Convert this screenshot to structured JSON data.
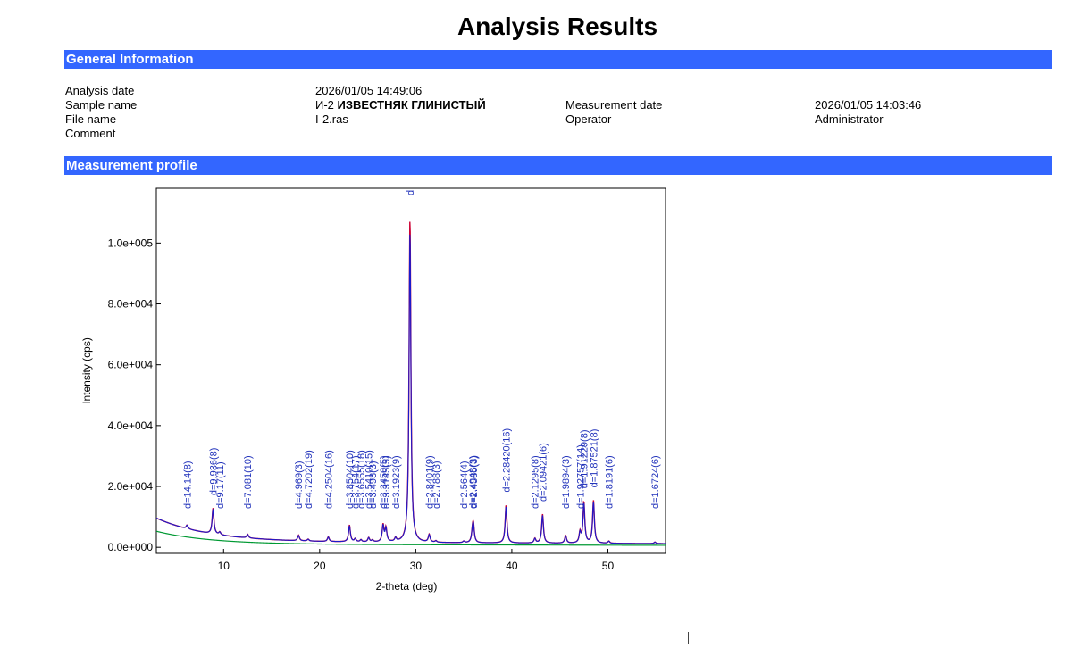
{
  "title": "Analysis Results",
  "sections": {
    "general": "General Information",
    "profile": "Measurement profile"
  },
  "info": {
    "analysis_date_label": "Analysis date",
    "analysis_date": "2026/01/05 14:49:06",
    "sample_name_label": "Sample name",
    "sample_name_prefix": "И-2",
    "sample_name_bold": "ИЗВЕСТНЯК ГЛИНИСТЫЙ",
    "measurement_date_label": "Measurement date",
    "measurement_date": "2026/01/05 14:03:46",
    "file_name_label": "File name",
    "file_name": "I-2.ras",
    "operator_label": "Operator",
    "operator": "Administrator",
    "comment_label": "Comment"
  },
  "chart_data": {
    "type": "line",
    "xlabel": "2-theta (deg)",
    "ylabel": "Intensity (cps)",
    "xlim": [
      3,
      56
    ],
    "ylim": [
      -2000,
      118000
    ],
    "xticks": [
      10,
      20,
      30,
      40,
      50
    ],
    "xtick_labels": [
      "10",
      "20",
      "30",
      "40",
      "50"
    ],
    "yticks": [
      0,
      20000,
      40000,
      60000,
      80000,
      100000
    ],
    "ytick_labels": [
      "0.0e+000",
      "2.0e+004",
      "4.0e+004",
      "6.0e+004",
      "8.0e+004",
      "1.0e+005"
    ],
    "colors": {
      "observed": "#cc0033",
      "calculated": "#1a1acc",
      "background": "#009933",
      "label": "#2233bb"
    },
    "background": {
      "start": 9000,
      "end": 1200
    },
    "peaks": [
      {
        "x": 6.2,
        "h": 1200,
        "label": "d=14.14(8)"
      },
      {
        "x": 8.9,
        "h": 8500,
        "label": "d=9.936(8)"
      },
      {
        "x": 9.6,
        "h": 900,
        "label": "d=9.17(11)"
      },
      {
        "x": 12.5,
        "h": 1200,
        "label": "d=7.081(10)"
      },
      {
        "x": 17.8,
        "h": 1800,
        "label": "d=4.969(3)"
      },
      {
        "x": 18.8,
        "h": 600,
        "label": "d=4.7202(19)"
      },
      {
        "x": 20.9,
        "h": 1500,
        "label": "d=4.2504(16)"
      },
      {
        "x": 23.1,
        "h": 5500,
        "label": "d=3.8504(10)"
      },
      {
        "x": 23.7,
        "h": 1000,
        "label": "d=3.754(17)"
      },
      {
        "x": 24.3,
        "h": 700,
        "label": "d=3.6555(18)"
      },
      {
        "x": 25.1,
        "h": 1400,
        "label": "d=3.5410(15)"
      },
      {
        "x": 25.5,
        "h": 600,
        "label": "d=3.493(3)"
      },
      {
        "x": 26.6,
        "h": 5500,
        "label": "d=3.3450(5)"
      },
      {
        "x": 26.9,
        "h": 4500,
        "label": "d=3.3145(5)"
      },
      {
        "x": 27.9,
        "h": 1200,
        "label": "d=3.1923(9)"
      },
      {
        "x": 29.4,
        "h": 107000,
        "label": "d"
      },
      {
        "x": 31.4,
        "h": 2500,
        "label": "d=2.8401(9)"
      },
      {
        "x": 32.1,
        "h": 500,
        "label": "d=2.788(3)"
      },
      {
        "x": 35.0,
        "h": 500,
        "label": "d=2.564(4)"
      },
      {
        "x": 35.9,
        "h": 3000,
        "label": "d=2.4948(3)"
      },
      {
        "x": 36.0,
        "h": 5500,
        "label": "d=2.4585(3)"
      },
      {
        "x": 39.4,
        "h": 12500,
        "label": "d=2.28420(16)"
      },
      {
        "x": 42.4,
        "h": 1500,
        "label": "d=2.1295(8)"
      },
      {
        "x": 43.2,
        "h": 9500,
        "label": "d=2.09421(6)"
      },
      {
        "x": 45.6,
        "h": 2500,
        "label": "d=1.9894(3)"
      },
      {
        "x": 47.1,
        "h": 3500,
        "label": "d=1.92757(14)"
      },
      {
        "x": 47.5,
        "h": 13500,
        "label": "d=1.91229(8)"
      },
      {
        "x": 48.5,
        "h": 14000,
        "label": "d=1.87521(8)"
      },
      {
        "x": 50.1,
        "h": 700,
        "label": "d=1.8191(6)"
      },
      {
        "x": 54.9,
        "h": 500,
        "label": "d=1.6724(6)"
      }
    ]
  }
}
